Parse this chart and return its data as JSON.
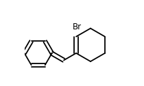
{
  "background_color": "#ffffff",
  "line_color": "#000000",
  "lw": 1.3,
  "br_label": "Br",
  "br_fontsize": 8.5,
  "figsize": [
    2.1,
    1.26
  ],
  "dpi": 100,
  "xlim": [
    0.0,
    1.0
  ],
  "ylim": [
    0.05,
    0.95
  ]
}
